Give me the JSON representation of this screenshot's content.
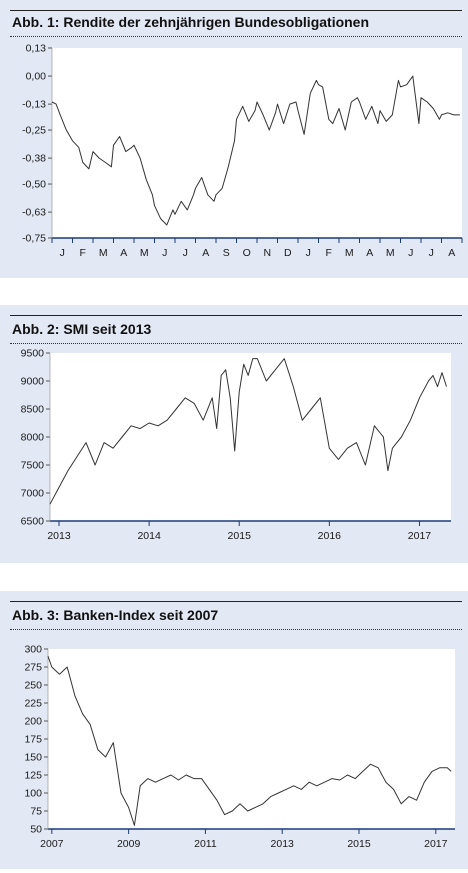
{
  "colors": {
    "panel_bg": "#e2e8f4",
    "plot_bg": "#ffffff",
    "line": "#333333",
    "axis": "#1a3a7a"
  },
  "chart_data": [
    {
      "type": "line",
      "title": "Abb. 1: Rendite der zehnjährigen Bundesobligationen",
      "xlabel": "",
      "ylabel": "",
      "x_tick_labels": [
        "J",
        "F",
        "M",
        "A",
        "M",
        "J",
        "J",
        "A",
        "S",
        "O",
        "N",
        "D",
        "J",
        "F",
        "M",
        "A",
        "M",
        "J",
        "J",
        "A"
      ],
      "y_ticks": [
        "0,13",
        "0,00",
        "-0,13",
        "-0,25",
        "-0,38",
        "-0,50",
        "-0,63",
        "-0,75"
      ],
      "ylim": [
        -0.75,
        0.13
      ],
      "grid": false,
      "series": [
        {
          "x": [
            0,
            0.2,
            0.4,
            0.7,
            1.0,
            1.3,
            1.5,
            1.8,
            2.0,
            2.3,
            2.6,
            2.9,
            3.0,
            3.3,
            3.6,
            3.9,
            4.0,
            4.3,
            4.6,
            4.9,
            5.0,
            5.3,
            5.6,
            5.9,
            6.0,
            6.3,
            6.6,
            6.9,
            7.0,
            7.3,
            7.6,
            7.9,
            8.0,
            8.3,
            8.6,
            8.9,
            9.0,
            9.3,
            9.6,
            9.9,
            10.0,
            10.3,
            10.6,
            10.9,
            11.0,
            11.3,
            11.6,
            11.9,
            12.0,
            12.3,
            12.6,
            12.9,
            13.0,
            13.2,
            13.5,
            13.7,
            14.0,
            14.3,
            14.6,
            14.9,
            15.0,
            15.3,
            15.6,
            15.9,
            16.0,
            16.3,
            16.6,
            16.9,
            17.0,
            17.3,
            17.6,
            17.9,
            18.0,
            18.3,
            18.6,
            18.9,
            19.0,
            19.3,
            19.6,
            19.9
          ],
          "y": [
            -0.12,
            -0.13,
            -0.18,
            -0.25,
            -0.3,
            -0.33,
            -0.4,
            -0.43,
            -0.35,
            -0.38,
            -0.4,
            -0.42,
            -0.32,
            -0.28,
            -0.35,
            -0.33,
            -0.32,
            -0.38,
            -0.48,
            -0.55,
            -0.6,
            -0.66,
            -0.69,
            -0.62,
            -0.64,
            -0.58,
            -0.62,
            -0.55,
            -0.52,
            -0.47,
            -0.55,
            -0.58,
            -0.55,
            -0.52,
            -0.42,
            -0.3,
            -0.2,
            -0.14,
            -0.21,
            -0.16,
            -0.12,
            -0.18,
            -0.25,
            -0.17,
            -0.13,
            -0.22,
            -0.13,
            -0.12,
            -0.16,
            -0.27,
            -0.08,
            -0.02,
            -0.04,
            -0.05,
            -0.2,
            -0.22,
            -0.15,
            -0.25,
            -0.12,
            -0.1,
            -0.12,
            -0.2,
            -0.14,
            -0.22,
            -0.16,
            -0.21,
            -0.18,
            -0.02,
            -0.05,
            -0.04,
            0.0,
            -0.22,
            -0.1,
            -0.12,
            -0.15,
            -0.2,
            -0.18,
            -0.17,
            -0.18,
            -0.18
          ]
        }
      ]
    },
    {
      "type": "line",
      "title": "Abb. 2: SMI seit 2013",
      "xlabel": "",
      "ylabel": "",
      "x_tick_labels": [
        "2013",
        "2014",
        "2015",
        "2016",
        "2017"
      ],
      "y_ticks": [
        "6500",
        "7000",
        "7500",
        "8000",
        "8500",
        "9000",
        "9500"
      ],
      "ylim": [
        6500,
        9500
      ],
      "xlim": [
        2012.9,
        2017.35
      ],
      "grid": false,
      "series": [
        {
          "x": [
            2012.9,
            2013.0,
            2013.1,
            2013.2,
            2013.3,
            2013.4,
            2013.5,
            2013.6,
            2013.7,
            2013.8,
            2013.9,
            2014.0,
            2014.1,
            2014.2,
            2014.3,
            2014.4,
            2014.5,
            2014.6,
            2014.7,
            2014.75,
            2014.8,
            2014.85,
            2014.9,
            2014.95,
            2015.0,
            2015.05,
            2015.1,
            2015.15,
            2015.2,
            2015.3,
            2015.4,
            2015.5,
            2015.6,
            2015.7,
            2015.8,
            2015.9,
            2016.0,
            2016.1,
            2016.2,
            2016.3,
            2016.4,
            2016.5,
            2016.6,
            2016.65,
            2016.7,
            2016.8,
            2016.9,
            2017.0,
            2017.1,
            2017.15,
            2017.2,
            2017.25,
            2017.3
          ],
          "y": [
            6800,
            7100,
            7400,
            7650,
            7900,
            7500,
            7900,
            7800,
            8000,
            8200,
            8150,
            8250,
            8200,
            8300,
            8500,
            8700,
            8600,
            8300,
            8700,
            8150,
            9100,
            9200,
            8700,
            7750,
            8800,
            9300,
            9100,
            9400,
            9400,
            9000,
            9200,
            9400,
            8900,
            8300,
            8500,
            8700,
            7800,
            7600,
            7800,
            7900,
            7500,
            8200,
            8000,
            7400,
            7800,
            8000,
            8300,
            8700,
            9000,
            9100,
            8900,
            9150,
            8900
          ]
        }
      ]
    },
    {
      "type": "line",
      "title": "Abb. 3: Banken-Index seit 2007",
      "xlabel": "",
      "ylabel": "",
      "x_tick_labels": [
        "2007",
        "2009",
        "2011",
        "2013",
        "2015",
        "2017"
      ],
      "y_ticks": [
        "300",
        "275",
        "250",
        "225",
        "200",
        "175",
        "150",
        "125",
        "100",
        "75",
        "50"
      ],
      "ylim": [
        50,
        300
      ],
      "xlim": [
        2006.9,
        2017.5
      ],
      "grid": false,
      "series": [
        {
          "x": [
            2006.9,
            2007.0,
            2007.2,
            2007.4,
            2007.6,
            2007.8,
            2008.0,
            2008.2,
            2008.4,
            2008.6,
            2008.8,
            2009.0,
            2009.15,
            2009.3,
            2009.5,
            2009.7,
            2009.9,
            2010.1,
            2010.3,
            2010.5,
            2010.7,
            2010.9,
            2011.1,
            2011.3,
            2011.5,
            2011.7,
            2011.9,
            2012.1,
            2012.3,
            2012.5,
            2012.7,
            2012.9,
            2013.1,
            2013.3,
            2013.5,
            2013.7,
            2013.9,
            2014.1,
            2014.3,
            2014.5,
            2014.7,
            2014.9,
            2015.1,
            2015.3,
            2015.5,
            2015.7,
            2015.9,
            2016.1,
            2016.3,
            2016.5,
            2016.7,
            2016.9,
            2017.1,
            2017.3,
            2017.4
          ],
          "y": [
            290,
            275,
            265,
            275,
            235,
            210,
            195,
            160,
            150,
            170,
            100,
            80,
            55,
            110,
            120,
            115,
            120,
            125,
            118,
            125,
            120,
            120,
            105,
            90,
            70,
            75,
            85,
            75,
            80,
            85,
            95,
            100,
            105,
            110,
            105,
            115,
            110,
            115,
            120,
            118,
            125,
            120,
            130,
            140,
            135,
            115,
            105,
            85,
            95,
            90,
            115,
            130,
            135,
            135,
            130
          ]
        }
      ]
    }
  ]
}
